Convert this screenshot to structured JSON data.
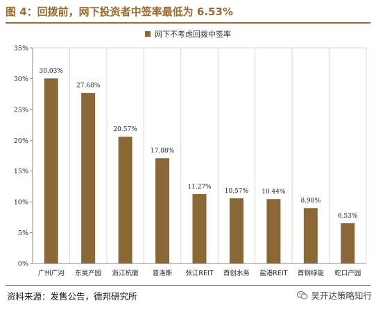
{
  "header": {
    "title": "图 4：回拨前，网下投资者中签率最低为 6.53%"
  },
  "footer": {
    "source": "资料来源：发售公告，德邦研究所",
    "watermark": "吴开达策略知行"
  },
  "icons": {
    "watermark": "wechat-icon"
  },
  "colors": {
    "bar": "#8b6636",
    "accent": "#9a6a2f"
  },
  "chart_data": {
    "type": "bar",
    "legend": [
      "网下不考虑回拨中签率"
    ],
    "legend_position": "top-center",
    "categories": [
      "广州广河",
      "东吴产园",
      "浙江杭徽",
      "普洛斯",
      "张江REIT",
      "首创水务",
      "盐港REIT",
      "首钢绿能",
      "蛇口产园"
    ],
    "series": [
      {
        "name": "网下不考虑回拨中签率",
        "values": [
          30.03,
          27.68,
          20.57,
          17.08,
          11.27,
          10.57,
          10.44,
          8.98,
          6.53
        ],
        "labels": [
          "30.03%",
          "27.68%",
          "20.57%",
          "17.08%",
          "11.27%",
          "10.57%",
          "10.44%",
          "8.98%",
          "6.53%"
        ]
      }
    ],
    "ylim": [
      0,
      35
    ],
    "yticks": [
      0,
      5,
      10,
      15,
      20,
      25,
      30,
      35
    ],
    "ytick_labels": [
      "0%",
      "5%",
      "10%",
      "15%",
      "20%",
      "25%",
      "30%",
      "35%"
    ],
    "grid": "vertical",
    "xlabel": "",
    "ylabel": ""
  }
}
